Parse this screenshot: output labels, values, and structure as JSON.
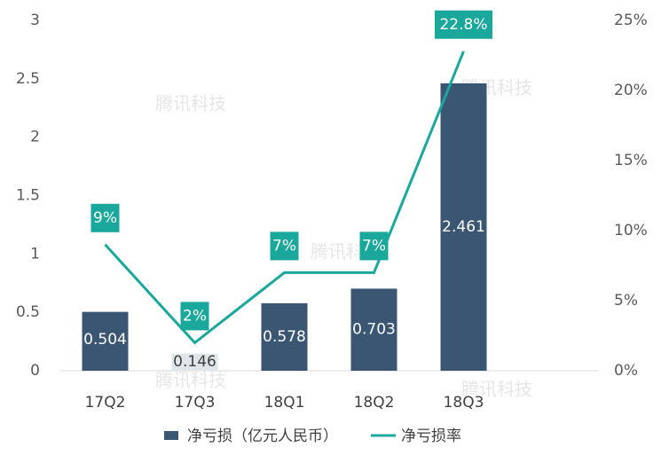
{
  "chart_data": {
    "type": "bar-line",
    "watermark": "腾讯科技",
    "categories": [
      "17Q2",
      "17Q3",
      "18Q1",
      "18Q2",
      "18Q3",
      null
    ],
    "series": [
      {
        "name": "净亏损（亿元人民币）",
        "type": "bar",
        "color": "#3b5673",
        "values": [
          0.504,
          0.146,
          0.578,
          0.703,
          2.461,
          null
        ]
      },
      {
        "name": "净亏损率",
        "type": "line",
        "axis": "y2",
        "color": "#1aa89c",
        "values": [
          9,
          2,
          7,
          7,
          22.8,
          null
        ],
        "value_labels": [
          "9%",
          "2%",
          "7%",
          "7%",
          "22.8%",
          null
        ]
      }
    ],
    "ylim": [
      0,
      3
    ],
    "yticks": [
      0,
      0.5,
      1,
      1.5,
      2,
      2.5,
      3
    ],
    "y2lim": [
      0,
      25
    ],
    "y2ticks": [
      {
        "value": 0,
        "label": "0%"
      },
      {
        "value": 5,
        "label": "5%"
      },
      {
        "value": 10,
        "label": "10%"
      },
      {
        "value": 15,
        "label": "15%"
      },
      {
        "value": 20,
        "label": "20%"
      },
      {
        "value": 25,
        "label": "25%"
      }
    ],
    "legend": "bottom",
    "grid": false
  }
}
